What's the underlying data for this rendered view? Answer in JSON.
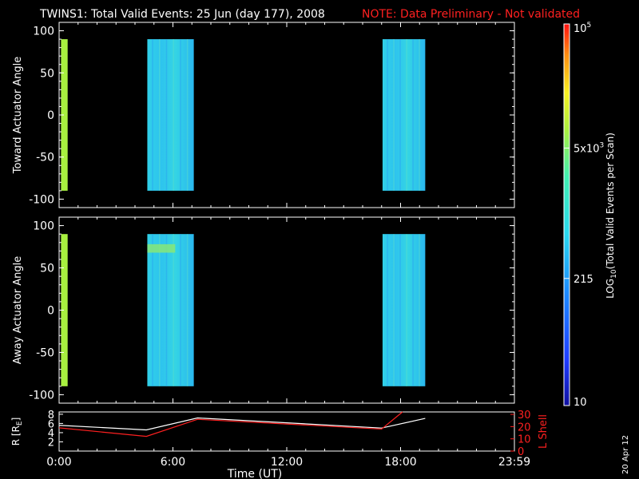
{
  "title": {
    "main": "TWINS1: Total Valid Events: 25 Jun (day 177), 2008",
    "note": "NOTE: Data Preliminary - Not validated",
    "note_color": "#ff2020"
  },
  "side_date": "20 Apr 12",
  "chart_data": [
    {
      "type": "heatmap",
      "ylabel": "Toward Actuator Angle",
      "ylim": [
        -110,
        110
      ],
      "yticks": [
        100,
        50,
        0,
        -50,
        -100
      ],
      "x_units": "hours UT",
      "xlim": [
        0,
        24
      ],
      "angle_range": [
        -90,
        90
      ],
      "blocks": [
        {
          "x_start": 0.1,
          "x_end": 0.45,
          "level": "5x10^3",
          "color": "#a8f040"
        },
        {
          "x_start": 4.65,
          "x_end": 7.1,
          "level": "~800",
          "color": "#30d0e8"
        },
        {
          "x_start": 17.05,
          "x_end": 19.3,
          "level": "~900",
          "color": "#38d8e0"
        }
      ]
    },
    {
      "type": "heatmap",
      "ylabel": "Away Actuator Angle",
      "ylim": [
        -110,
        110
      ],
      "yticks": [
        100,
        50,
        0,
        -50,
        -100
      ],
      "x_units": "hours UT",
      "xlim": [
        0,
        24
      ],
      "angle_range": [
        -90,
        90
      ],
      "blocks": [
        {
          "x_start": 0.1,
          "x_end": 0.45,
          "level": "5x10^3",
          "color": "#a8f040"
        },
        {
          "x_start": 4.65,
          "x_end": 7.1,
          "level": "~800",
          "color": "#30d0e8"
        },
        {
          "x_start": 17.05,
          "x_end": 19.3,
          "level": "~900",
          "color": "#38d8e0"
        }
      ]
    },
    {
      "type": "line",
      "ylabel_left": "R [R",
      "ylabel_left_sub": "E",
      "ylabel_left_end": "]",
      "ylabel_right": "L Shell",
      "xlabel": "Time (UT)",
      "xticks": [
        "0:00",
        "6:00",
        "12:00",
        "18:00",
        "23:59"
      ],
      "xtick_hours": [
        0,
        6,
        12,
        18,
        24
      ],
      "yticks_left": [
        2,
        4,
        6,
        8
      ],
      "ylim_left": [
        0,
        8.5
      ],
      "yticks_right": [
        0,
        10,
        20,
        30
      ],
      "ylim_right": [
        0,
        32
      ],
      "series": [
        {
          "axis": "left",
          "color": "#ffffff",
          "x": [
            0,
            4.6,
            7.3,
            17.0,
            19.3
          ],
          "y": [
            5.6,
            4.6,
            7.2,
            5.0,
            7.1
          ]
        },
        {
          "axis": "right",
          "color": "#ff2020",
          "x": [
            0,
            4.6,
            7.3,
            17.0,
            18.1
          ],
          "y": [
            19,
            12,
            26,
            18,
            32
          ]
        }
      ]
    }
  ],
  "colorbar": {
    "label": "LOG",
    "label_sub": "10",
    "label_end": "(Total Valid  Events per Scan)",
    "scale": "log",
    "range": [
      10,
      100000
    ],
    "ticks": [
      {
        "value": 100000,
        "text": "10",
        "sup": "5"
      },
      {
        "value": 5000,
        "text": "5x10",
        "sup": "3"
      },
      {
        "value": 215,
        "text": "215",
        "sup": ""
      },
      {
        "value": 10,
        "text": "10",
        "sup": ""
      }
    ]
  }
}
